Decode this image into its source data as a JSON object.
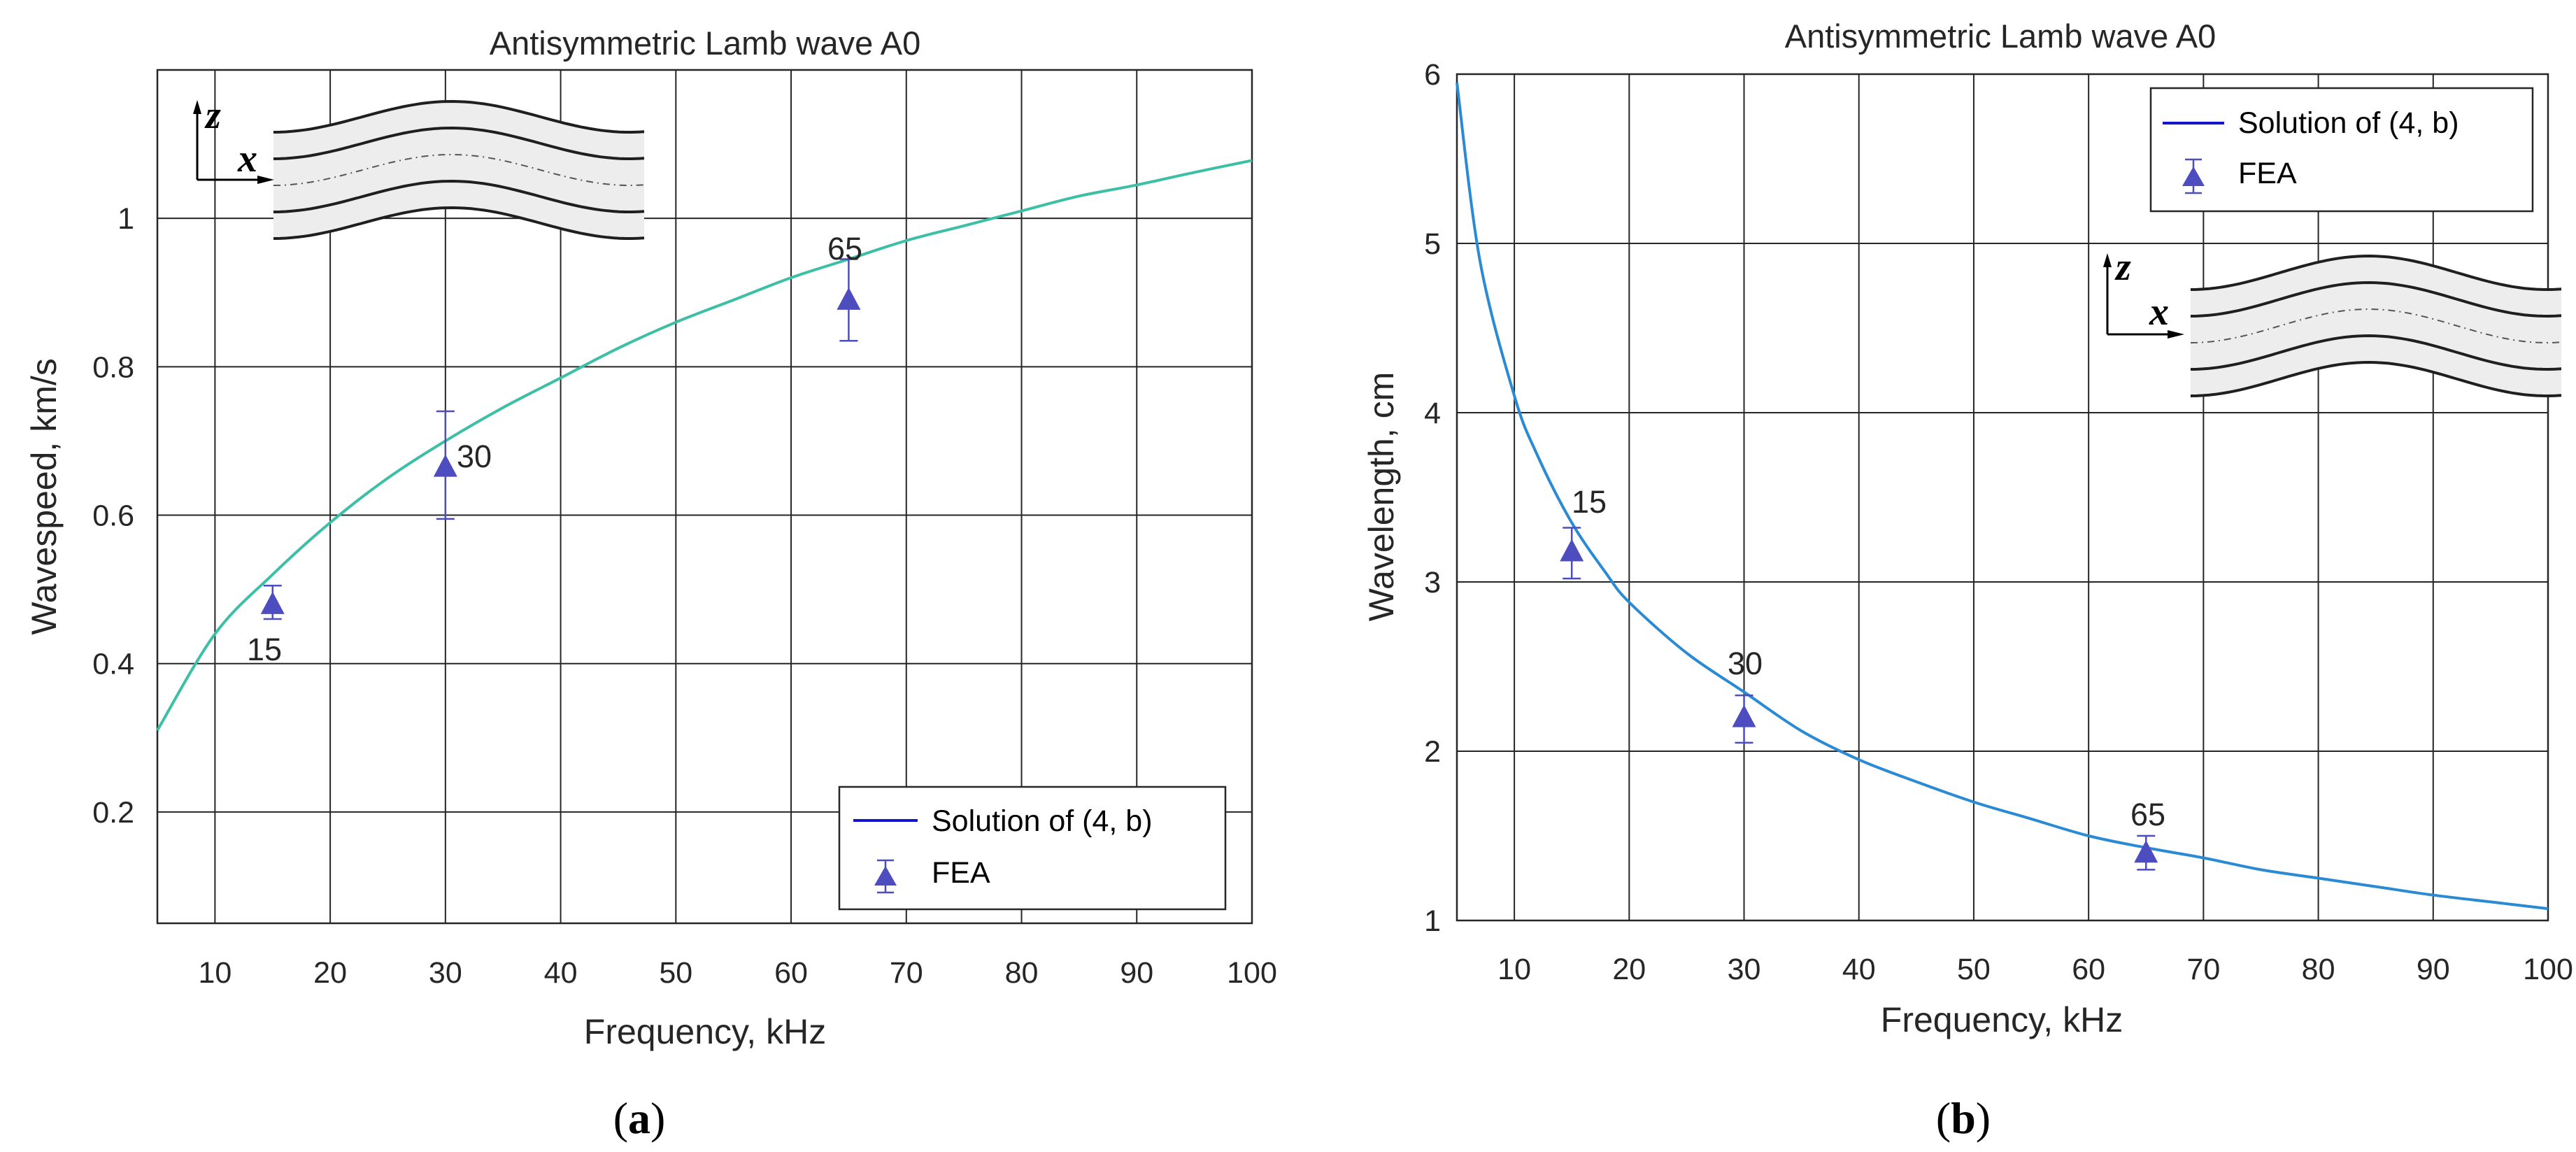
{
  "chart_data": [
    {
      "type": "line",
      "title": "Antisymmetric Lamb wave A0",
      "xlabel": "Frequency, kHz",
      "ylabel": "Wavespeed, km/s",
      "xlim": [
        5,
        100
      ],
      "ylim": [
        0.05,
        1.2
      ],
      "xticks": [
        "10",
        "20",
        "30",
        "40",
        "50",
        "60",
        "70",
        "80",
        "90",
        "100"
      ],
      "yticks": [
        "0.2",
        "0.4",
        "0.6",
        "0.8",
        "1"
      ],
      "grid": true,
      "legend_position": "bottom-right",
      "legend": [
        "Solution of (4, b)",
        "FEA"
      ],
      "caption": "a",
      "series": [
        {
          "name": "Solution of (4, b)",
          "color": "#3dbfa6",
          "x": [
            5,
            10,
            15,
            20,
            25,
            30,
            35,
            40,
            45,
            50,
            55,
            60,
            65,
            70,
            75,
            80,
            85,
            90,
            95,
            100
          ],
          "values": [
            0.31,
            0.44,
            0.52,
            0.59,
            0.65,
            0.7,
            0.745,
            0.785,
            0.825,
            0.86,
            0.89,
            0.92,
            0.945,
            0.97,
            0.99,
            1.01,
            1.03,
            1.045,
            1.062,
            1.078
          ]
        },
        {
          "name": "FEA",
          "color": "#4d4dc0",
          "x": [
            15,
            30,
            65
          ],
          "values": [
            0.48,
            0.665,
            0.89
          ],
          "err_low": [
            0.46,
            0.595,
            0.835
          ],
          "err_high": [
            0.505,
            0.74,
            0.945
          ],
          "labels": [
            "15",
            "30",
            "65"
          ]
        }
      ]
    },
    {
      "type": "line",
      "title": "Antisymmetric Lamb wave A0",
      "xlabel": "Frequency, kHz",
      "ylabel": "Wavelength, cm",
      "xlim": [
        5,
        100
      ],
      "ylim": [
        1,
        6
      ],
      "xticks": [
        "10",
        "20",
        "30",
        "40",
        "50",
        "60",
        "70",
        "80",
        "90",
        "100"
      ],
      "yticks": [
        "1",
        "2",
        "3",
        "4",
        "5",
        "6"
      ],
      "grid": true,
      "legend_position": "top-right",
      "legend": [
        "Solution of (4, b)",
        "FEA"
      ],
      "caption": "b",
      "series": [
        {
          "name": "Solution of (4, b)",
          "color": "#2a8ad4",
          "x": [
            5,
            7,
            10,
            12,
            15,
            18,
            20,
            25,
            30,
            35,
            40,
            45,
            50,
            55,
            60,
            65,
            70,
            75,
            80,
            85,
            90,
            95,
            100
          ],
          "values": [
            5.95,
            4.9,
            4.1,
            3.75,
            3.35,
            3.05,
            2.88,
            2.58,
            2.35,
            2.12,
            1.95,
            1.82,
            1.7,
            1.6,
            1.5,
            1.43,
            1.37,
            1.3,
            1.25,
            1.2,
            1.15,
            1.11,
            1.07
          ]
        },
        {
          "name": "FEA",
          "color": "#4d4dc0",
          "x": [
            15,
            30,
            65
          ],
          "values": [
            3.18,
            2.2,
            1.4
          ],
          "err_low": [
            3.02,
            2.05,
            1.3
          ],
          "err_high": [
            3.32,
            2.33,
            1.5
          ],
          "labels": [
            "15",
            "30",
            "65"
          ]
        }
      ]
    }
  ],
  "insets": {
    "z_label": "z",
    "x_label": "x"
  },
  "legend_colors": {
    "solution_line": "#1515d0",
    "fea_marker": "#4d4dc0"
  }
}
